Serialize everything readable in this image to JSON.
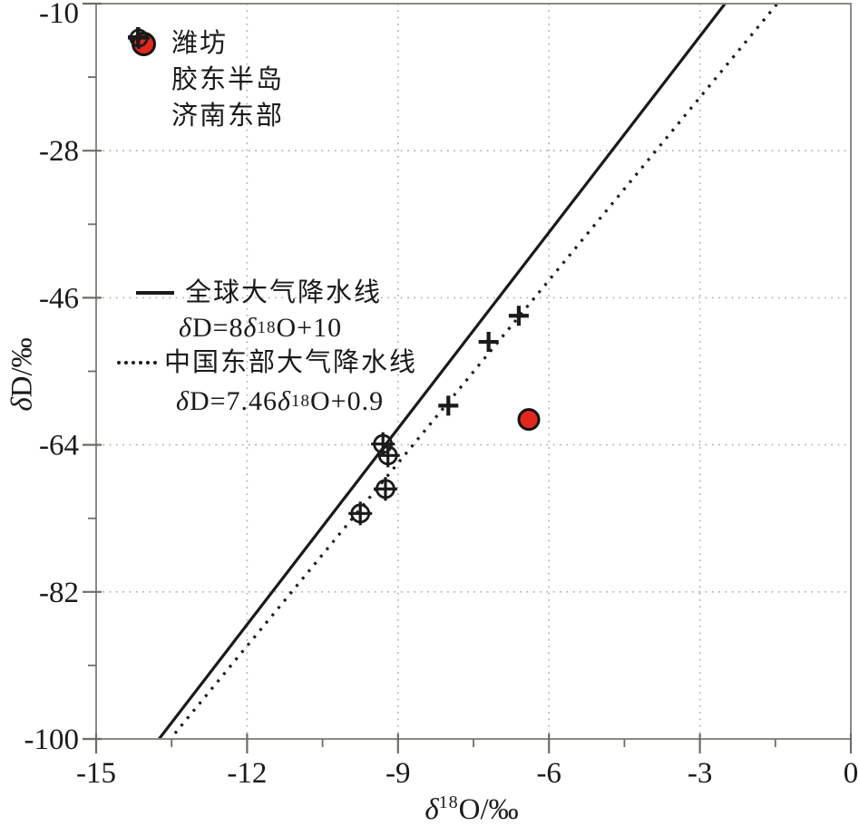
{
  "colors": {
    "accent_red": "#e3271f",
    "data_line": "#1a1a1a",
    "spine": "#8b8b83",
    "tick": "#6e6e66",
    "grid": "#b2b2aa",
    "text": "#1a1a1a"
  },
  "axes": {
    "x_title": {
      "d": "δ",
      "sup": "18",
      "rest": "O/‰"
    },
    "y_title": {
      "d": "δ",
      "rest": "D/‰"
    }
  },
  "chart_data": {
    "type": "scatter",
    "xlabel": "δ18O/‰",
    "ylabel": "δD/‰",
    "xlim": [
      -15,
      0
    ],
    "ylim": [
      -100,
      -10
    ],
    "grid": {
      "x": [
        -12,
        -9,
        -6,
        -3
      ],
      "y": [
        -28,
        -46,
        -64,
        -82
      ]
    },
    "x_ticks": {
      "major": [
        -15,
        -12,
        -9,
        -6,
        -3,
        0
      ],
      "labels": [
        "-15",
        "-12",
        "-9",
        "-6",
        "-3",
        "0"
      ],
      "minor": [
        -13.5,
        -10.5,
        -7.5,
        -4.5,
        -1.5
      ]
    },
    "y_ticks": {
      "major": [
        -10,
        -28,
        -46,
        -64,
        -82,
        -100
      ],
      "labels": [
        "-10",
        "-28",
        "-46",
        "-64",
        "-82",
        "-100"
      ],
      "minor": [
        -19,
        -37,
        -55,
        -73,
        -91
      ]
    },
    "series": [
      {
        "id": "weifang",
        "name": "潍坊",
        "marker": "filled-circle",
        "color": "#e3271f",
        "points": [
          [
            -6.4,
            -60.9
          ]
        ]
      },
      {
        "id": "jiaodong-peninsula",
        "name": "胶东半岛",
        "marker": "plus",
        "color": "#1a1a1a",
        "points": [
          [
            -6.6,
            -48.2
          ],
          [
            -7.2,
            -51.4
          ],
          [
            -8.0,
            -59.2
          ]
        ]
      },
      {
        "id": "jinan-east",
        "name": "济南东部",
        "marker": "circle-plus",
        "color": "#1a1a1a",
        "points": [
          [
            -9.3,
            -63.9
          ],
          [
            -9.2,
            -65.3
          ],
          [
            -9.25,
            -69.4
          ],
          [
            -9.75,
            -72.4
          ]
        ]
      }
    ],
    "lines": [
      {
        "id": "gmwl",
        "name": "全球大气降水线",
        "style": "solid",
        "slope": 8,
        "intercept": 10,
        "equation": "δD=8δ18O+10",
        "eq_parts": {
          "d1": "δ",
          "t1": "D=8",
          "d2": "δ",
          "sup": "18",
          "t2": "O+10"
        }
      },
      {
        "id": "east-china-mwl",
        "name": "中国东部大气降水线",
        "style": "dotted",
        "slope": 7.46,
        "intercept": 0.9,
        "equation": "δD=7.46δ18O+0.9",
        "eq_parts": {
          "d1": "δ",
          "t1": "D=7.46",
          "d2": "δ",
          "sup": "18",
          "t2": "O+0.9"
        }
      }
    ]
  }
}
